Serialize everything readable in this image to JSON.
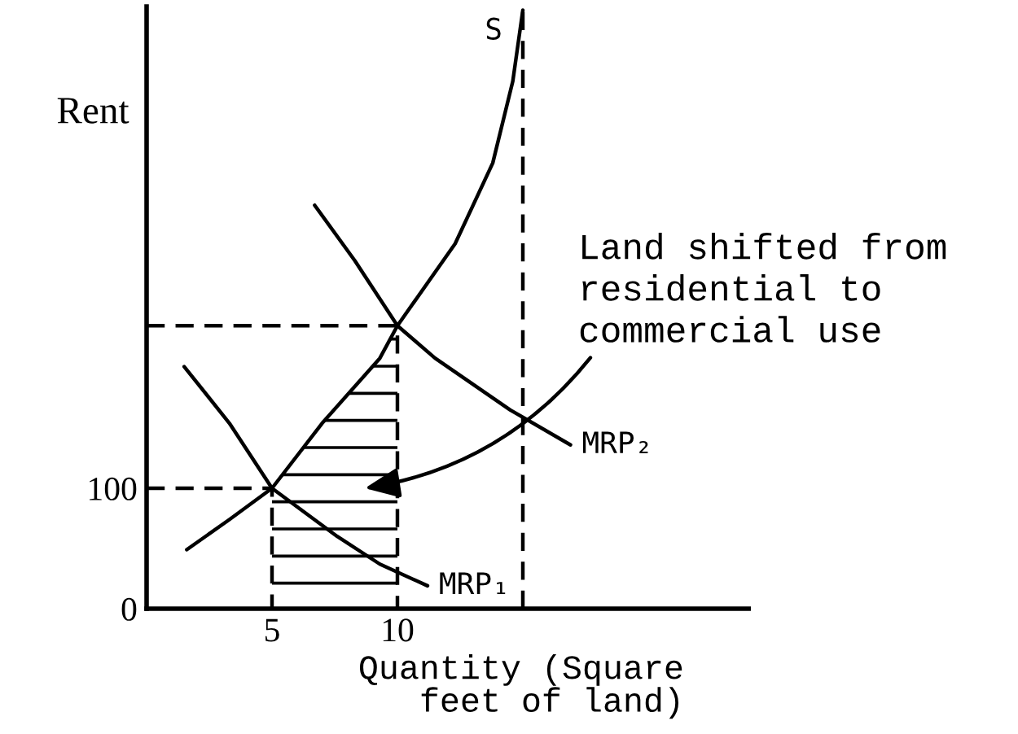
{
  "chart_data": {
    "type": "line",
    "xlabel": "Quantity (Square\nfeet of land)",
    "ylabel": "Rent",
    "xlim": [
      0,
      24
    ],
    "ylim": [
      0,
      500
    ],
    "xticks": [
      5,
      10
    ],
    "yticks": [
      0,
      100
    ],
    "series": [
      {
        "type": "area",
        "color": "#000000",
        "x": [
          5,
          7,
          9.3,
          10
        ],
        "values": [
          100,
          154,
          208,
          235
        ]
      },
      {
        "color": "#000000",
        "line_style": "dashed",
        "x": [
          0,
          5,
          5
        ],
        "values": [
          100,
          100,
          0
        ]
      },
      {
        "color": "#000000",
        "line_style": "dashed",
        "x": [
          0,
          10,
          10
        ],
        "values": [
          235,
          235,
          0
        ]
      },
      {
        "color": "#000000",
        "line_style": "dashed",
        "x": [
          15,
          15
        ],
        "values": [
          0,
          497
        ]
      },
      {
        "name": "S",
        "color": "#000000",
        "line_style": "solid",
        "x": [
          1.6,
          3.3,
          5,
          7,
          9.3,
          10,
          12.3,
          13.8,
          14.6,
          15
        ],
        "values": [
          49,
          74,
          100,
          154,
          208,
          235,
          303,
          370,
          438,
          497
        ]
      },
      {
        "name": "MRP₁",
        "color": "#000000",
        "line_style": "solid",
        "x": [
          1.5,
          3.3,
          5,
          7.6,
          9.3,
          11.2
        ],
        "values": [
          201,
          154,
          100,
          60,
          37,
          19
        ]
      },
      {
        "name": "MRP₂",
        "color": "#000000",
        "line_style": "solid",
        "x": [
          6.7,
          8.3,
          10,
          11.5,
          14.5,
          16.9
        ],
        "values": [
          335,
          289,
          235,
          208,
          165,
          136
        ]
      }
    ],
    "annotations": [
      "Land shifted from\nresidential to\ncommercial use"
    ]
  }
}
